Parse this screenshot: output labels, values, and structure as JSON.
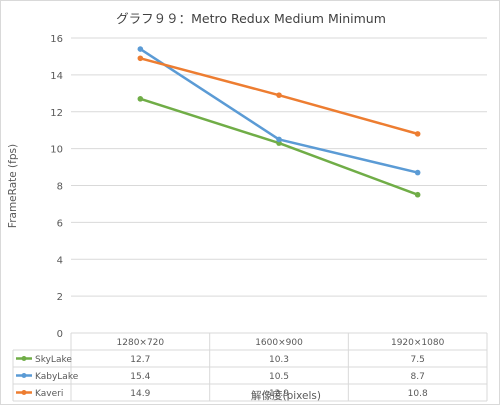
{
  "chart_data": {
    "type": "line",
    "title": "グラフ９９：Metro Redux Medium Minimum",
    "xlabel": "解像度(pixels)",
    "ylabel": "FrameRate (fps)",
    "categories": [
      "1280×720",
      "1600×900",
      "1920×1080"
    ],
    "ylim": [
      0,
      16
    ],
    "yticks": [
      0,
      2,
      4,
      6,
      8,
      10,
      12,
      14,
      16
    ],
    "grid": true,
    "legend": "data-table",
    "series": [
      {
        "name": "SkyLake",
        "color": "#70ad47",
        "values": [
          12.7,
          10.3,
          7.5
        ]
      },
      {
        "name": "KabyLake",
        "color": "#5b9bd5",
        "values": [
          15.4,
          10.5,
          8.7
        ]
      },
      {
        "name": "Kaveri",
        "color": "#ed7d31",
        "values": [
          14.9,
          12.9,
          10.8
        ]
      }
    ],
    "table_values": [
      [
        "12.7",
        "10.3",
        "7.5"
      ],
      [
        "15.4",
        "10.5",
        "8.7"
      ],
      [
        "14.9",
        "12.9",
        "10.8"
      ]
    ]
  }
}
